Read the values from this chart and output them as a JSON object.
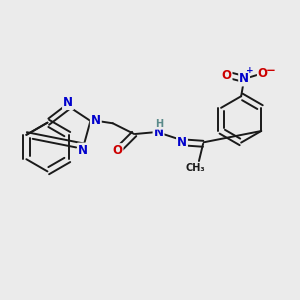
{
  "bg_color": "#ebebeb",
  "bond_color": "#1a1a1a",
  "N_color": "#0000cc",
  "O_color": "#cc0000",
  "H_color": "#5a8a8a",
  "bond_width": 1.4,
  "font_size_atom": 8.5,
  "font_size_small": 6.5,
  "xlim": [
    0,
    10
  ],
  "ylim": [
    0,
    10
  ]
}
